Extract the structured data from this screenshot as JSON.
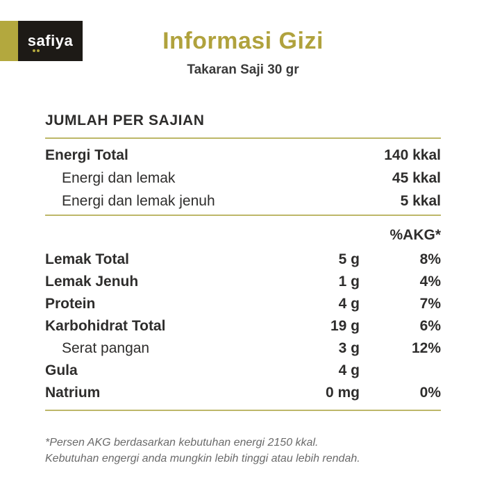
{
  "brand": {
    "logo_text": "safiya"
  },
  "header": {
    "title": "Informasi Gizi",
    "subtitle": "Takaran Saji 30 gr"
  },
  "section": {
    "heading": "JUMLAH PER SAJIAN",
    "akg_header": "%AKG*"
  },
  "energy_rows": [
    {
      "label": "Energi Total",
      "value": "140 kkal",
      "bold": true,
      "indent": false
    },
    {
      "label": "Energi dan lemak",
      "value": "45 kkal",
      "bold": false,
      "indent": true
    },
    {
      "label": "Energi dan lemak jenuh",
      "value": "5 kkal",
      "bold": false,
      "indent": true
    }
  ],
  "nutrient_rows": [
    {
      "label": "Lemak Total",
      "amount": "5 g",
      "akg": "8%",
      "bold": true,
      "indent": false
    },
    {
      "label": "Lemak Jenuh",
      "amount": "1 g",
      "akg": "4%",
      "bold": true,
      "indent": false
    },
    {
      "label": "Protein",
      "amount": "4 g",
      "akg": "7%",
      "bold": true,
      "indent": false
    },
    {
      "label": "Karbohidrat Total",
      "amount": "19 g",
      "akg": "6%",
      "bold": true,
      "indent": false
    },
    {
      "label": "Serat pangan",
      "amount": "3 g",
      "akg": "12%",
      "bold": false,
      "indent": true
    },
    {
      "label": "Gula",
      "amount": "4 g",
      "akg": "",
      "bold": true,
      "indent": false
    },
    {
      "label": "Natrium",
      "amount": "0 mg",
      "akg": "0%",
      "bold": true,
      "indent": false
    }
  ],
  "footnote": {
    "line1": "*Persen AKG berdasarkan kebutuhan energi 2150 kkal.",
    "line2": "Kebutuhan engergi anda mungkin lebih tinggi atau lebih rendah."
  },
  "colors": {
    "accent": "#b0a23d",
    "divider": "#bdb768",
    "text": "#2e2d2c",
    "muted": "#6a6a6a",
    "logo_bg": "#1d1a16",
    "logo_gold": "#b3a83e"
  }
}
